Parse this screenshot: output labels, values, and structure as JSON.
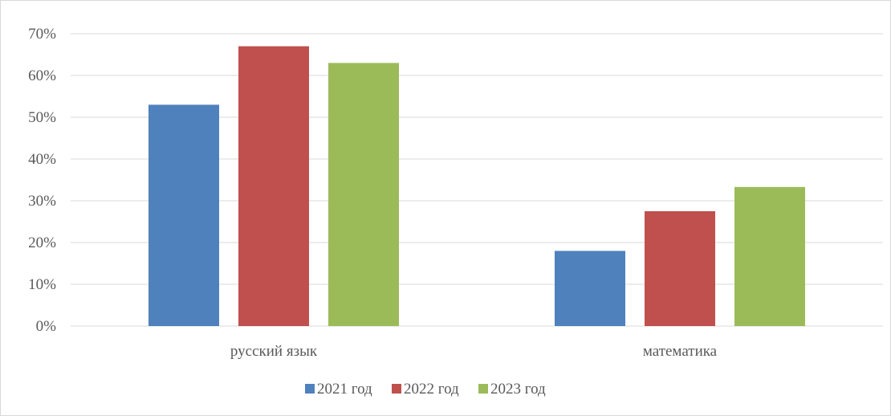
{
  "chart_data": {
    "type": "bar",
    "categories": [
      "русский язык",
      "математика"
    ],
    "series": [
      {
        "name": "2021 год",
        "color": "#4f81bd",
        "values": [
          53,
          18
        ]
      },
      {
        "name": "2022 год",
        "color": "#c0504d",
        "values": [
          67,
          27.5
        ]
      },
      {
        "name": "2023 год",
        "color": "#9bbb59",
        "values": [
          63,
          33.3
        ]
      }
    ],
    "ylim": [
      0,
      70
    ],
    "yticks": [
      0,
      10,
      20,
      30,
      40,
      50,
      60,
      70
    ],
    "ytick_labels": [
      "0%",
      "10%",
      "20%",
      "30%",
      "40%",
      "50%",
      "60%",
      "70%"
    ],
    "grid": true,
    "legend_position": "bottom"
  }
}
